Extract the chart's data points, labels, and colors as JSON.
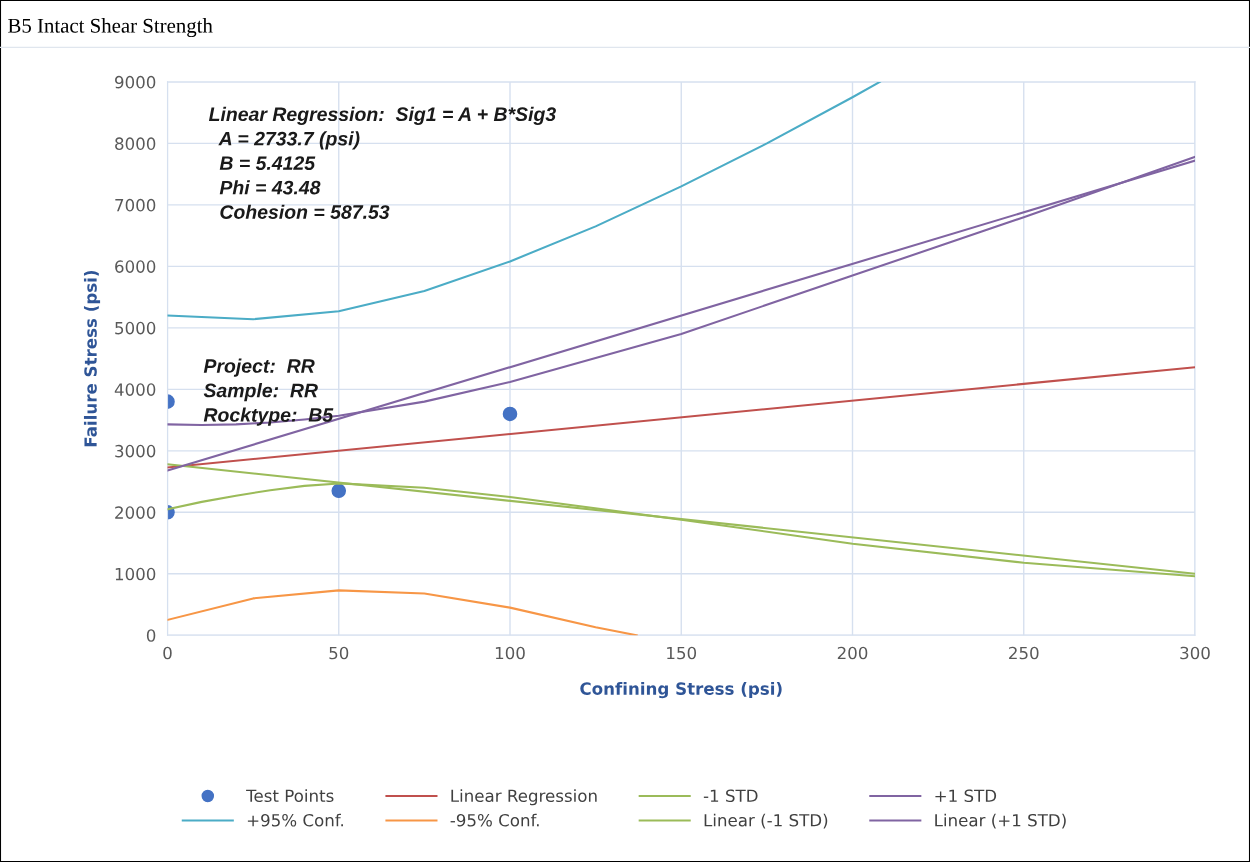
{
  "chart_data": {
    "type": "line",
    "title": "B5 Intact Shear Strength",
    "xlabel": "Confining Stress (psi)",
    "ylabel": "Failure Stress (psi)",
    "xlim": [
      0,
      300
    ],
    "xticks": [
      0,
      50,
      100,
      150,
      200,
      250,
      300
    ],
    "ylim": [
      0,
      9000
    ],
    "yticks": [
      0,
      1000,
      2000,
      3000,
      4000,
      5000,
      6000,
      7000,
      8000,
      9000
    ],
    "grid": true,
    "legend": "bottom",
    "line_style": "solid",
    "marker": "none",
    "series": [
      {
        "name": "Test Points",
        "type": "scatter",
        "marker": "circle",
        "color": "#4472c4",
        "x": [
          0,
          0,
          50,
          100
        ],
        "values": [
          3800,
          2000,
          2350,
          3600
        ]
      },
      {
        "name": "Linear Regression",
        "color": "#c0504d",
        "x": [
          0,
          300
        ],
        "values": [
          2730,
          4360
        ]
      },
      {
        "name": "-1 STD",
        "color": "#9bbb59",
        "x": [
          0,
          10,
          20,
          30,
          40,
          50,
          75,
          100,
          150,
          200,
          250,
          300
        ],
        "values": [
          2050,
          2170,
          2270,
          2360,
          2430,
          2470,
          2400,
          2250,
          1880,
          1490,
          1180,
          960
        ]
      },
      {
        "name": "+1 STD",
        "color": "#8064a2",
        "x": [
          0,
          10,
          20,
          30,
          40,
          50,
          75,
          100,
          150,
          200,
          250,
          300
        ],
        "values": [
          3430,
          3420,
          3430,
          3460,
          3510,
          3570,
          3800,
          4120,
          4900,
          5850,
          6800,
          7780
        ]
      },
      {
        "name": "+95% Conf.",
        "color": "#4bacc6",
        "x": [
          0,
          25,
          50,
          75,
          100,
          125,
          150,
          175,
          200,
          208
        ],
        "values": [
          5200,
          5140,
          5270,
          5600,
          6080,
          6650,
          7300,
          8000,
          8750,
          9000
        ]
      },
      {
        "name": "-95% Conf.",
        "color": "#f79646",
        "x": [
          0,
          25,
          50,
          75,
          100,
          125,
          137
        ],
        "values": [
          250,
          600,
          730,
          680,
          450,
          130,
          0
        ]
      },
      {
        "name": "Linear (-1 STD)",
        "color": "#9bbb59",
        "x": [
          0,
          300
        ],
        "values": [
          2780,
          1000
        ]
      },
      {
        "name": "Linear (+1 STD)",
        "color": "#8064a2",
        "x": [
          0,
          300
        ],
        "values": [
          2680,
          7720
        ]
      }
    ],
    "annotations": [
      "Linear Regression:  Sig1 = A + B*Sig3\n  A = 2733.7 (psi)\n  B = 5.4125\n  Phi = 43.48\n  Cohesion = 587.53",
      "Project:  RR\nSample:  RR\nRocktype:  B5"
    ]
  }
}
